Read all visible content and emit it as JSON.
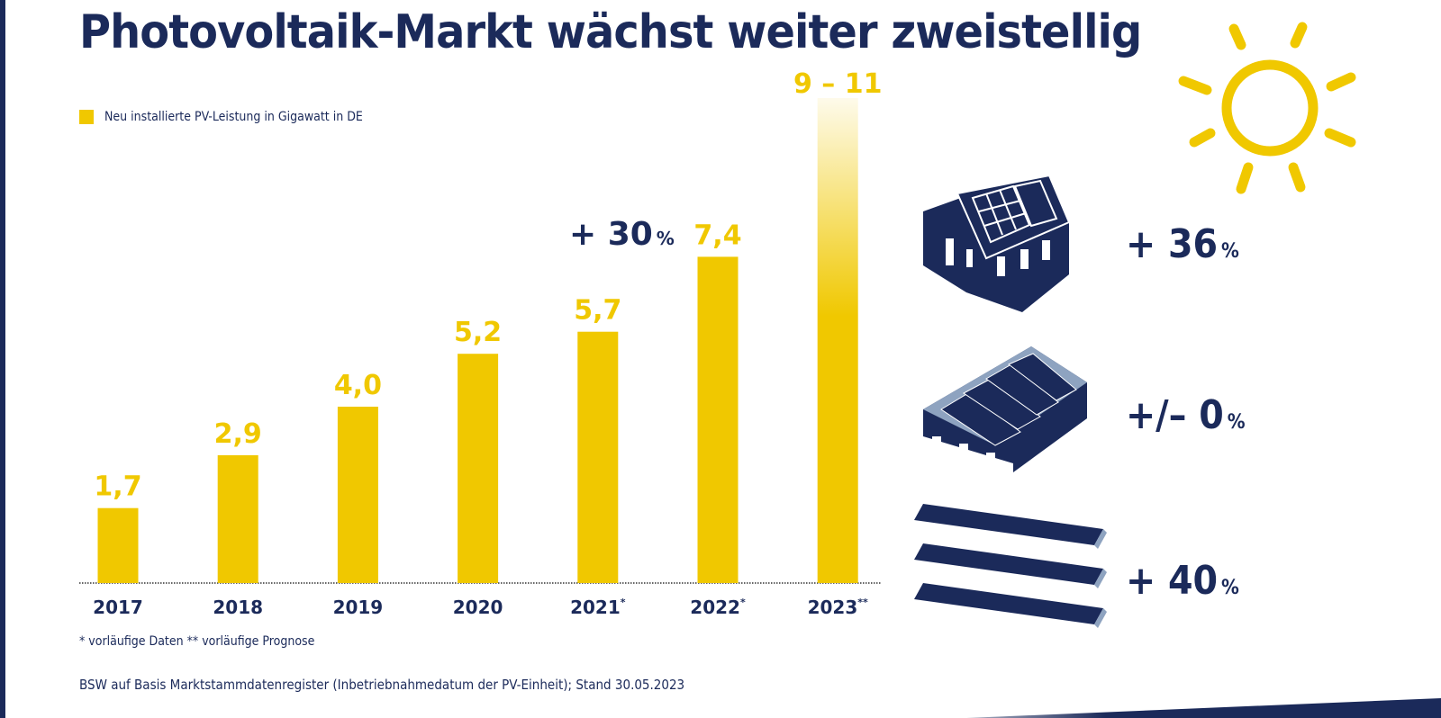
{
  "title": "Photovoltaik-Markt wächst weiter zweistellig",
  "chart_data": {
    "type": "bar",
    "legend": "Neu installierte PV-Leistung in Gigawatt in DE",
    "categories": [
      "2017",
      "2018",
      "2019",
      "2020",
      "2021",
      "2022",
      "2023"
    ],
    "category_suffix": [
      "",
      "",
      "",
      "",
      "*",
      "*",
      "**"
    ],
    "values": [
      1.7,
      2.9,
      4.0,
      5.2,
      5.7,
      7.4,
      [
        9,
        11
      ]
    ],
    "value_labels": [
      "1,7",
      "2,9",
      "4,0",
      "5,2",
      "5,7",
      "7,4",
      "9 – 11"
    ],
    "annotation": "+ 30",
    "annotation_unit": "%",
    "bar_color": "#f0c800",
    "ylim": [
      0,
      11
    ]
  },
  "segments": [
    {
      "icon": "house-solar-roof-icon",
      "value": "+ 36",
      "unit": "%"
    },
    {
      "icon": "commercial-roof-solar-icon",
      "value": "+/– 0",
      "unit": "%"
    },
    {
      "icon": "ground-mounted-solar-icon",
      "value": "+ 40",
      "unit": "%"
    }
  ],
  "footnote": "* vorläufige Daten  ** vorläufige Prognose",
  "source": "BSW auf Basis Marktstammdatenregister (Inbetriebnahmedatum der PV-Einheit); Stand 30.05.2023",
  "colors": {
    "navy": "#1b2a5a",
    "yellow": "#f0c800"
  }
}
